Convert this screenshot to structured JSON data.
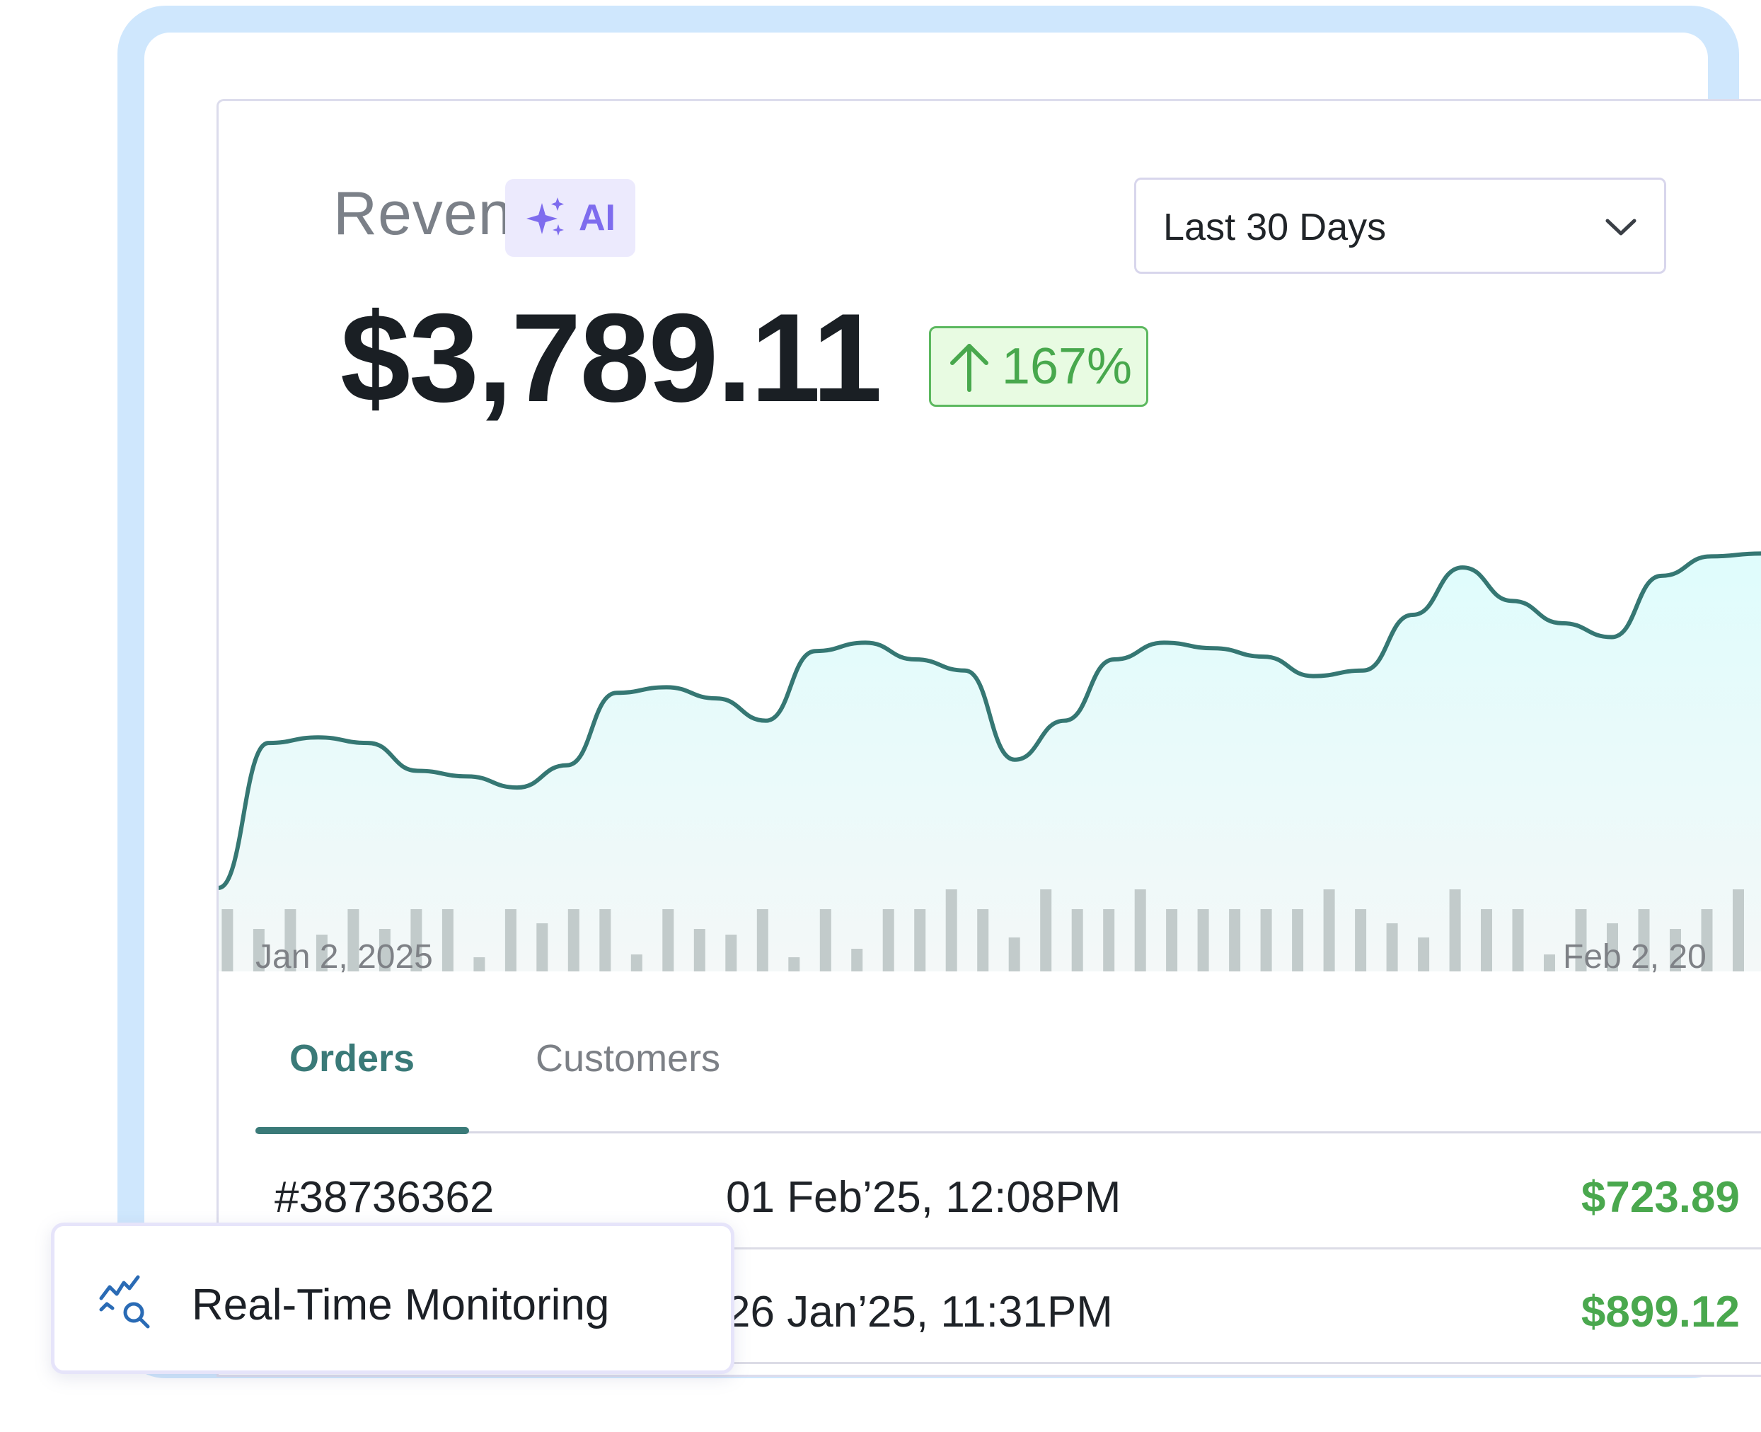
{
  "revenue": {
    "title": "Revenue",
    "ai_label": "AI",
    "amount": "$3,789.11",
    "change": "167%"
  },
  "range_select": {
    "selected": "Last 30 Days"
  },
  "chart_data": {
    "type": "area",
    "x_start_label": "Jan 2, 2025",
    "x_end_label": "Feb 2, 20",
    "line_values": [
      30,
      82,
      84,
      82,
      72,
      70,
      66,
      74,
      100,
      102,
      98,
      90,
      115,
      118,
      112,
      108,
      76,
      90,
      112,
      118,
      116,
      113,
      106,
      108,
      128,
      145,
      133,
      125,
      120,
      142,
      149,
      150
    ],
    "bar_values": [
      44,
      30,
      44,
      26,
      44,
      30,
      44,
      44,
      10,
      44,
      34,
      44,
      44,
      12,
      44,
      30,
      26,
      44,
      10,
      44,
      16,
      44,
      44,
      58,
      44,
      24,
      58,
      44,
      44,
      58,
      44,
      44,
      44,
      44,
      44,
      58,
      44,
      34,
      24,
      58,
      44,
      44,
      12,
      44,
      34,
      44,
      30,
      44,
      58
    ],
    "line_color": "#357773",
    "fill_color": "#dffcfc",
    "bar_color": "#c2cbcb"
  },
  "tabs": [
    {
      "label": "Orders",
      "active": true
    },
    {
      "label": "Customers",
      "active": false
    }
  ],
  "orders": [
    {
      "id": "#38736362",
      "date": "01 Feb’25, 12:08PM",
      "amount": "$723.89"
    },
    {
      "id": "",
      "date": "26 Jan’25, 11:31PM",
      "amount": "$899.12"
    }
  ],
  "toast": {
    "label": "Real-Time Monitoring",
    "icon": "chart-search-icon"
  },
  "colors": {
    "accent": "#3a7a78",
    "positive": "#4aa84e",
    "ai": "#7e6cee",
    "frame": "#cfe7fd"
  }
}
